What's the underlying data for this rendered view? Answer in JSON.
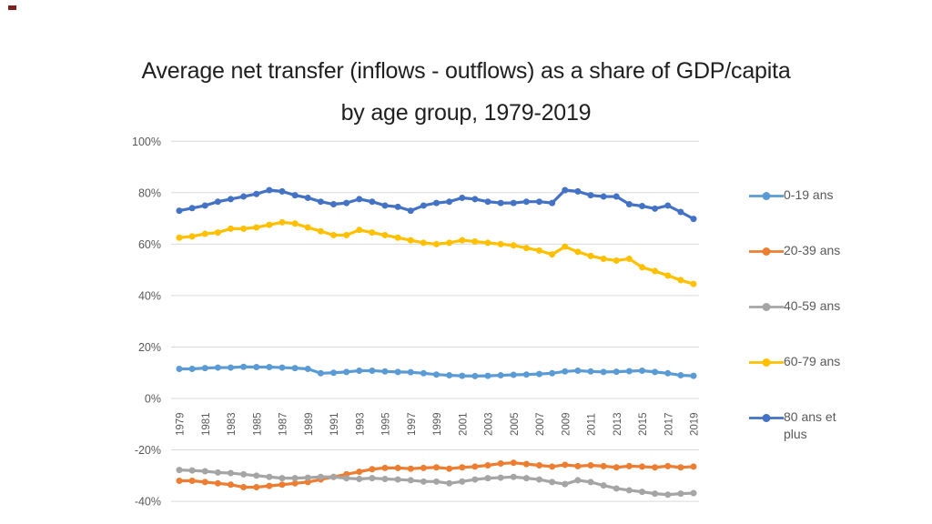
{
  "slide": {
    "title_line1": "Average net transfer (inflows - outflows) as a share of GDP/capita",
    "title_line2": "by age group, 1979-2019"
  },
  "chart_data": {
    "type": "line",
    "title": "Average net transfer (inflows - outflows) as a share of GDP/capita by age group, 1979-2019",
    "xlabel": "",
    "ylabel": "",
    "ylim": [
      -40,
      100
    ],
    "grid": true,
    "legend_position": "right",
    "x": [
      1979,
      1980,
      1981,
      1982,
      1983,
      1984,
      1985,
      1986,
      1987,
      1988,
      1989,
      1990,
      1991,
      1992,
      1993,
      1994,
      1995,
      1996,
      1997,
      1998,
      1999,
      2000,
      2001,
      2002,
      2003,
      2004,
      2005,
      2006,
      2007,
      2008,
      2009,
      2010,
      2011,
      2012,
      2013,
      2014,
      2015,
      2016,
      2017,
      2018,
      2019
    ],
    "x_ticks": [
      1979,
      1981,
      1983,
      1985,
      1987,
      1989,
      1991,
      1993,
      1995,
      1997,
      1999,
      2001,
      2003,
      2005,
      2007,
      2009,
      2011,
      2013,
      2015,
      2017,
      2019
    ],
    "y_ticks": [
      100,
      80,
      60,
      40,
      20,
      0,
      -20,
      -40
    ],
    "y_tick_labels": [
      "100%",
      "80%",
      "60%",
      "40%",
      "20%",
      "0%",
      "-20%",
      "-40%"
    ],
    "series": [
      {
        "name": "0-19 ans",
        "color": "#5B9BD5",
        "values": [
          11.5,
          11.5,
          11.8,
          12,
          12,
          12.3,
          12.2,
          12.2,
          12,
          11.8,
          11.5,
          9.8,
          10,
          10.3,
          10.8,
          10.8,
          10.5,
          10.3,
          10.2,
          9.8,
          9.3,
          9,
          8.8,
          8.7,
          8.8,
          9,
          9.2,
          9.3,
          9.5,
          9.8,
          10.5,
          10.8,
          10.5,
          10.3,
          10.4,
          10.6,
          10.8,
          10.3,
          9.8,
          9,
          8.8
        ]
      },
      {
        "name": "20-39 ans",
        "color": "#ED7D31",
        "values": [
          -32,
          -32,
          -32.5,
          -33,
          -33.5,
          -34.5,
          -34.5,
          -34,
          -33.5,
          -33,
          -32.5,
          -31.5,
          -30.5,
          -29.5,
          -28.5,
          -27.5,
          -27,
          -27,
          -27.3,
          -27,
          -26.8,
          -27.3,
          -26.8,
          -26.5,
          -26,
          -25.3,
          -25,
          -25.5,
          -26,
          -26.5,
          -25.8,
          -26.3,
          -26,
          -26.3,
          -26.8,
          -26.3,
          -26.5,
          -26.8,
          -26.3,
          -26.8,
          -26.5
        ]
      },
      {
        "name": "40-59 ans",
        "color": "#A5A5A5",
        "values": [
          -27.8,
          -28,
          -28.3,
          -28.8,
          -29,
          -29.5,
          -30,
          -30.5,
          -31,
          -31,
          -30.8,
          -30.5,
          -30.5,
          -31,
          -31.3,
          -31,
          -31.3,
          -31.5,
          -31.8,
          -32.3,
          -32.3,
          -33,
          -32.3,
          -31.5,
          -31,
          -30.8,
          -30.5,
          -31,
          -31.5,
          -32.5,
          -33.3,
          -31.8,
          -32.5,
          -33.8,
          -35,
          -35.7,
          -36.3,
          -37,
          -37.4,
          -37,
          -36.8
        ]
      },
      {
        "name": "60-79 ans",
        "color": "#FFC000",
        "values": [
          62.5,
          63,
          64,
          64.5,
          66,
          66,
          66.5,
          67.5,
          68.5,
          68,
          66.5,
          65,
          63.5,
          63.5,
          65.5,
          64.5,
          63.5,
          62.5,
          61.5,
          60.5,
          60,
          60.5,
          61.5,
          61,
          60.5,
          60,
          59.5,
          58.5,
          57.5,
          56,
          59,
          57,
          55.4,
          54.3,
          53.6,
          54.3,
          51,
          49.5,
          47.8,
          46,
          44.5
        ]
      },
      {
        "name": "80 ans et plus",
        "color": "#4472C4",
        "values": [
          73,
          74,
          75,
          76.5,
          77.5,
          78.5,
          79.5,
          81,
          80.5,
          79,
          78,
          76.5,
          75.5,
          76,
          77.5,
          76.5,
          75,
          74.5,
          73,
          75,
          76,
          76.5,
          78,
          77.5,
          76.5,
          76,
          76,
          76.5,
          76.5,
          76,
          81,
          80.5,
          79,
          78.5,
          78.5,
          75.5,
          74.8,
          73.8,
          75,
          72.5,
          69.8
        ]
      }
    ]
  }
}
